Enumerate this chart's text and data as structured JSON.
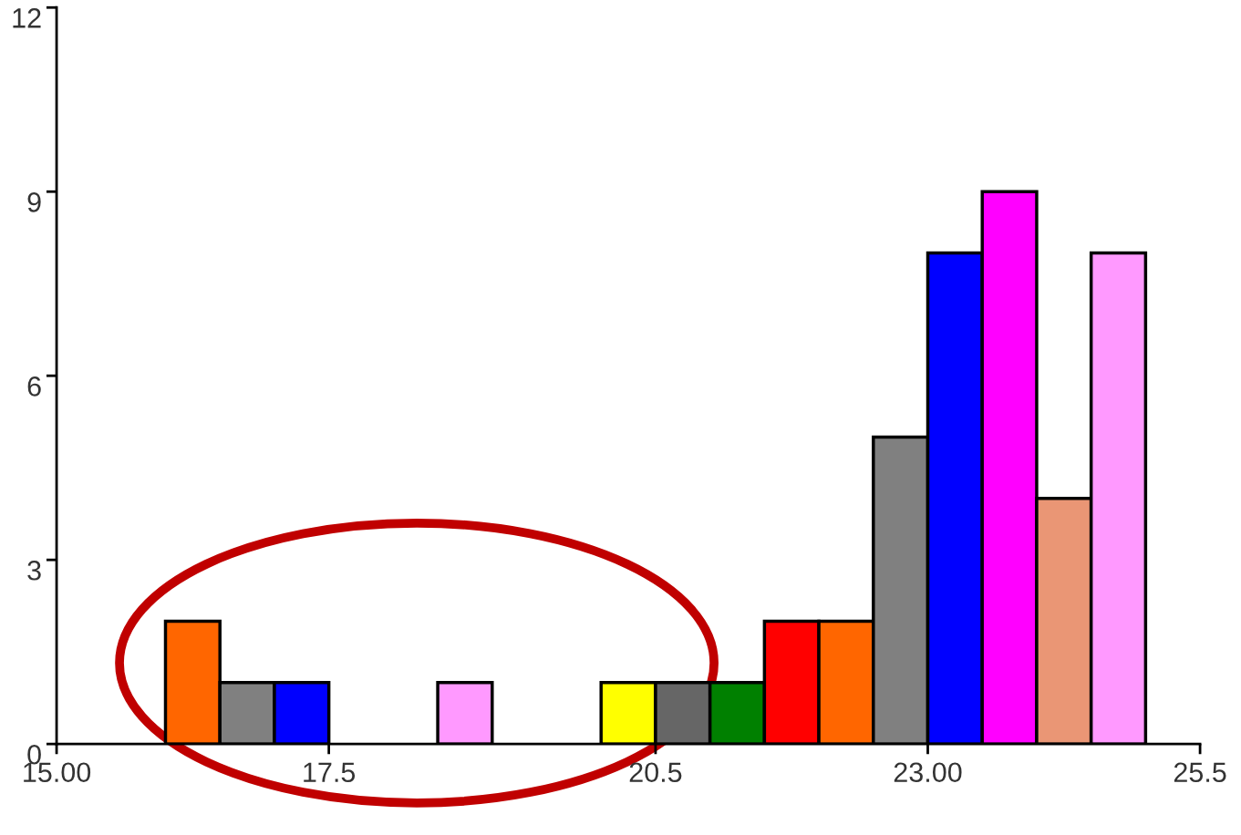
{
  "chart_data": {
    "type": "histogram",
    "bins": [
      16,
      16.5,
      17,
      17.5,
      18,
      18.5,
      19,
      19.5,
      20,
      20.5,
      21,
      21.5,
      22,
      22.5,
      23,
      23.5,
      24,
      24.5,
      25
    ],
    "values": [
      2,
      1,
      1,
      0,
      0,
      1,
      0,
      0,
      1,
      1,
      1,
      2,
      2,
      5,
      8,
      9,
      4,
      8
    ],
    "colors": [
      "#ff6600",
      "#808080",
      "#0000ff",
      null,
      null,
      "#ff99ff",
      null,
      null,
      "#ffff00",
      "#666666",
      "#008000",
      "#ff0000",
      "#ff6600",
      "#808080",
      "#0000ff",
      "#ff00ff",
      "#ea9675",
      "#ff99ff"
    ],
    "xlim": [
      15,
      25.5
    ],
    "xticks": [
      {
        "value": 15,
        "label": "15.00"
      },
      17.5,
      20.5,
      {
        "value": 23,
        "label": "23.00"
      },
      25.5
    ],
    "ylim": [
      0,
      12
    ],
    "yticks": [
      0,
      3,
      6,
      9,
      12
    ],
    "grid": false
  }
}
